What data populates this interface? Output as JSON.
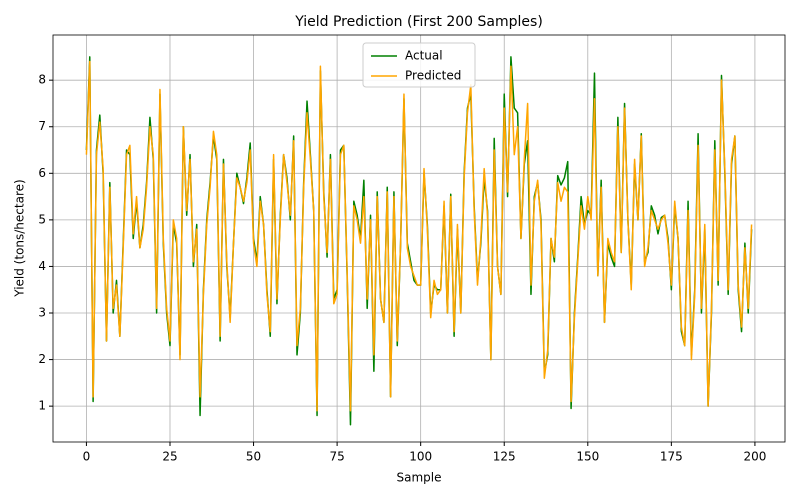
{
  "chart_data": {
    "type": "line",
    "title": "Yield Prediction (First 200 Samples)",
    "x_label": "Sample",
    "y_label": "Yield (tons/hectare)",
    "x": [
      0,
      1,
      2,
      3,
      4,
      5,
      6,
      7,
      8,
      9,
      10,
      11,
      12,
      13,
      14,
      15,
      16,
      17,
      18,
      19,
      20,
      21,
      22,
      23,
      24,
      25,
      26,
      27,
      28,
      29,
      30,
      31,
      32,
      33,
      34,
      35,
      36,
      37,
      38,
      39,
      40,
      41,
      42,
      43,
      44,
      45,
      46,
      47,
      48,
      49,
      50,
      51,
      52,
      53,
      54,
      55,
      56,
      57,
      58,
      59,
      60,
      61,
      62,
      63,
      64,
      65,
      66,
      67,
      68,
      69,
      70,
      71,
      72,
      73,
      74,
      75,
      76,
      77,
      78,
      79,
      80,
      81,
      82,
      83,
      84,
      85,
      86,
      87,
      88,
      89,
      90,
      91,
      92,
      93,
      94,
      95,
      96,
      97,
      98,
      99,
      100,
      101,
      102,
      103,
      104,
      105,
      106,
      107,
      108,
      109,
      110,
      111,
      112,
      113,
      114,
      115,
      116,
      117,
      118,
      119,
      120,
      121,
      122,
      123,
      124,
      125,
      126,
      127,
      128,
      129,
      130,
      131,
      132,
      133,
      134,
      135,
      136,
      137,
      138,
      139,
      140,
      141,
      142,
      143,
      144,
      145,
      146,
      147,
      148,
      149,
      150,
      151,
      152,
      153,
      154,
      155,
      156,
      157,
      158,
      159,
      160,
      161,
      162,
      163,
      164,
      165,
      166,
      167,
      168,
      169,
      170,
      171,
      172,
      173,
      174,
      175,
      176,
      177,
      178,
      179,
      180,
      181,
      182,
      183,
      184,
      185,
      186,
      187,
      188,
      189,
      190,
      191,
      192,
      193,
      194,
      195,
      196,
      197,
      198,
      199
    ],
    "series": [
      {
        "name": "Actual",
        "color": "#008000",
        "values": [
          6.5,
          8.5,
          1.1,
          6.5,
          7.25,
          6.0,
          2.4,
          5.8,
          3.0,
          3.7,
          2.5,
          4.5,
          6.5,
          6.4,
          4.6,
          5.4,
          4.4,
          4.9,
          5.8,
          7.2,
          6.3,
          3.0,
          7.7,
          4.5,
          3.0,
          2.3,
          4.9,
          4.5,
          2.1,
          7.0,
          5.1,
          6.4,
          4.0,
          4.9,
          0.8,
          3.5,
          5.0,
          5.8,
          6.8,
          6.3,
          2.4,
          6.3,
          4.0,
          2.9,
          4.5,
          6.0,
          5.7,
          5.35,
          5.9,
          6.65,
          4.6,
          4.1,
          5.5,
          4.9,
          3.5,
          2.5,
          6.3,
          3.2,
          5.1,
          6.4,
          5.9,
          5.0,
          6.8,
          2.1,
          3.0,
          5.8,
          7.55,
          6.4,
          5.2,
          0.8,
          8.2,
          5.6,
          4.2,
          6.4,
          3.3,
          3.5,
          6.5,
          6.6,
          3.8,
          0.6,
          5.4,
          5.1,
          4.6,
          5.85,
          3.1,
          5.1,
          1.75,
          5.6,
          3.3,
          2.8,
          5.7,
          1.2,
          5.6,
          2.3,
          4.5,
          7.6,
          4.5,
          4.1,
          3.7,
          3.6,
          3.6,
          6.0,
          4.9,
          3.0,
          3.6,
          3.5,
          3.5,
          5.3,
          3.0,
          5.55,
          2.5,
          4.8,
          3.0,
          6.0,
          7.4,
          7.7,
          5.3,
          3.7,
          4.5,
          5.9,
          5.2,
          2.0,
          6.75,
          4.0,
          3.4,
          7.7,
          5.5,
          8.5,
          7.4,
          7.3,
          4.6,
          6.2,
          6.7,
          3.4,
          5.5,
          5.8,
          5.0,
          1.7,
          2.1,
          4.6,
          4.1,
          5.95,
          5.75,
          5.9,
          6.25,
          0.95,
          3.0,
          4.2,
          5.5,
          4.9,
          5.2,
          5.1,
          8.15,
          3.8,
          5.85,
          2.8,
          4.5,
          4.2,
          4.0,
          7.2,
          4.3,
          7.5,
          5.0,
          3.6,
          6.2,
          5.0,
          6.85,
          4.1,
          4.3,
          5.3,
          5.1,
          4.7,
          5.05,
          5.1,
          4.6,
          3.5,
          5.3,
          4.6,
          2.6,
          2.3,
          5.4,
          2.1,
          3.5,
          6.85,
          3.0,
          4.8,
          1.0,
          3.0,
          6.7,
          3.6,
          8.1,
          6.0,
          3.4,
          6.2,
          6.8,
          3.5,
          2.6,
          4.5,
          3.0,
          4.8
        ]
      },
      {
        "name": "Predicted",
        "color": "#ffa500",
        "values": [
          6.4,
          8.4,
          1.2,
          6.4,
          7.1,
          6.1,
          2.4,
          5.7,
          3.1,
          3.6,
          2.5,
          4.4,
          6.4,
          6.6,
          4.7,
          5.5,
          4.4,
          4.8,
          5.7,
          7.0,
          6.4,
          3.1,
          7.8,
          4.6,
          3.1,
          2.4,
          5.0,
          4.6,
          2.0,
          7.0,
          5.2,
          6.3,
          4.1,
          4.8,
          1.2,
          3.4,
          4.9,
          5.7,
          6.9,
          6.4,
          2.5,
          6.2,
          4.1,
          2.8,
          4.5,
          5.9,
          5.7,
          5.4,
          5.8,
          6.5,
          4.5,
          4.0,
          5.4,
          4.9,
          3.4,
          2.6,
          6.4,
          3.3,
          5.0,
          6.4,
          5.8,
          5.1,
          6.7,
          2.3,
          3.1,
          5.7,
          7.3,
          6.3,
          5.2,
          0.9,
          8.3,
          5.5,
          4.3,
          6.3,
          3.2,
          3.4,
          6.4,
          6.6,
          3.9,
          0.9,
          5.3,
          5.0,
          4.5,
          5.5,
          3.3,
          5.0,
          2.1,
          5.5,
          3.3,
          2.8,
          5.6,
          1.2,
          5.5,
          2.4,
          4.5,
          7.7,
          4.4,
          4.0,
          3.8,
          3.6,
          3.6,
          6.1,
          4.8,
          2.9,
          3.7,
          3.4,
          3.5,
          5.4,
          3.0,
          5.5,
          2.6,
          4.9,
          3.0,
          5.9,
          7.3,
          7.9,
          5.2,
          3.6,
          4.6,
          6.1,
          5.1,
          2.0,
          6.5,
          4.0,
          3.4,
          7.4,
          5.6,
          8.3,
          6.4,
          7.0,
          4.6,
          6.3,
          7.5,
          3.6,
          5.4,
          5.85,
          4.9,
          1.6,
          2.2,
          4.6,
          4.2,
          5.8,
          5.4,
          5.7,
          5.6,
          1.1,
          2.9,
          4.1,
          5.3,
          4.8,
          5.5,
          5.0,
          7.6,
          3.8,
          5.7,
          2.8,
          4.6,
          4.3,
          4.1,
          7.0,
          4.3,
          7.4,
          5.0,
          3.5,
          6.3,
          5.0,
          6.8,
          4.0,
          4.4,
          5.2,
          5.0,
          4.8,
          5.0,
          5.1,
          4.5,
          3.6,
          5.4,
          4.6,
          2.7,
          2.3,
          5.2,
          2.0,
          3.4,
          6.6,
          3.1,
          4.9,
          1.0,
          3.1,
          6.5,
          3.7,
          8.0,
          6.1,
          3.5,
          6.3,
          6.8,
          3.6,
          2.7,
          4.4,
          3.1,
          4.9
        ]
      }
    ],
    "xlim": [
      -10,
      209
    ],
    "ylim": [
      0.23,
      8.97
    ],
    "xticks": [
      0,
      25,
      50,
      75,
      100,
      125,
      150,
      175,
      200
    ],
    "yticks": [
      1,
      2,
      3,
      4,
      5,
      6,
      7,
      8
    ],
    "grid": true,
    "legend": "upper center"
  }
}
